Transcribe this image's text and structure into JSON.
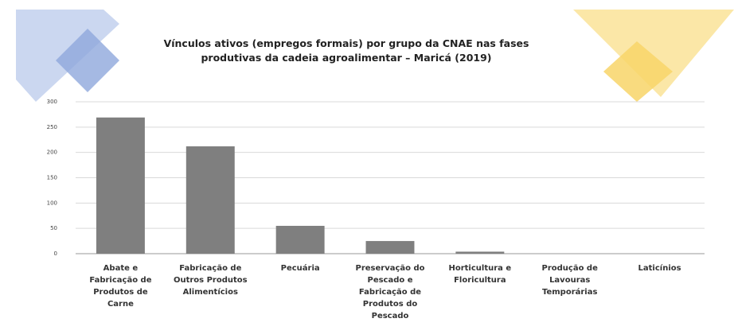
{
  "chart_data": {
    "type": "bar",
    "title": "Vínculos ativos (empregos formais) por grupo da CNAE nas fases produtivas da cadeia agroalimentar – Maricá (2019)",
    "categories": [
      "Abate e Fabricação de Produtos de Carne",
      "Fabricação de Outros Produtos Alimentícios",
      "Pecuária",
      "Preservação do Pescado e Fabricação de Produtos do Pescado",
      "Horticultura e Floricultura",
      "Produção de Lavouras Temporárias",
      "Laticínios"
    ],
    "values": [
      269,
      212,
      55,
      25,
      4,
      0,
      0
    ],
    "color": "#7f7f7f",
    "ylim": [
      0,
      300
    ],
    "yticks": [
      0,
      50,
      100,
      150,
      200,
      250,
      300
    ],
    "grid": true
  }
}
